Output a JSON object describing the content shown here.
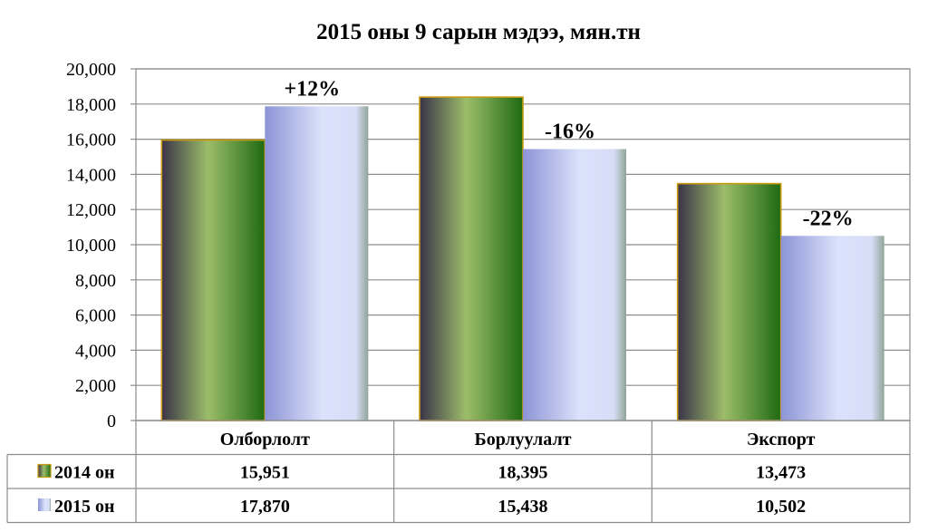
{
  "chart_data": {
    "type": "bar",
    "title": "2015 оны 9 сарын мэдээ, мян.тн",
    "categories": [
      "Олборлолт",
      "Борлуулалт",
      "Экспорт"
    ],
    "series": [
      {
        "name": "2014 он",
        "values": [
          15951,
          18395,
          13473
        ],
        "value_labels": [
          "15,951",
          "18,395",
          "13,473"
        ],
        "color": "#5c8f2f"
      },
      {
        "name": "2015 он",
        "values": [
          17870,
          15438,
          10502
        ],
        "value_labels": [
          "17,870",
          "15,438",
          "10,502"
        ],
        "color": "#aeb8ee"
      }
    ],
    "annotations": [
      "+12%",
      "-16%",
      "-22%"
    ],
    "ylim": [
      0,
      20000
    ],
    "yticks": [
      "0",
      "2,000",
      "4,000",
      "6,000",
      "8,000",
      "10,000",
      "12,000",
      "14,000",
      "16,000",
      "18,000",
      "20,000"
    ],
    "grid": true,
    "legend": "data-table"
  }
}
